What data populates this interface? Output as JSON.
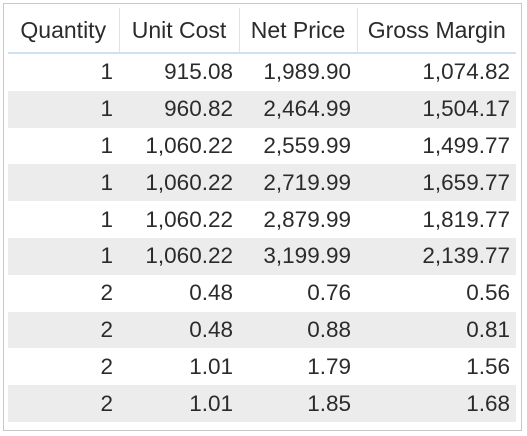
{
  "table": {
    "columns": [
      "Quantity",
      "Unit Cost",
      "Net Price",
      "Gross Margin"
    ],
    "rows": [
      [
        "1",
        "915.08",
        "1,989.90",
        "1,074.82"
      ],
      [
        "1",
        "960.82",
        "2,464.99",
        "1,504.17"
      ],
      [
        "1",
        "1,060.22",
        "2,559.99",
        "1,499.77"
      ],
      [
        "1",
        "1,060.22",
        "2,719.99",
        "1,659.77"
      ],
      [
        "1",
        "1,060.22",
        "2,879.99",
        "1,819.77"
      ],
      [
        "1",
        "1,060.22",
        "3,199.99",
        "2,139.77"
      ],
      [
        "2",
        "0.48",
        "0.76",
        "0.56"
      ],
      [
        "2",
        "0.48",
        "0.88",
        "0.81"
      ],
      [
        "2",
        "1.01",
        "1.79",
        "1.56"
      ],
      [
        "2",
        "1.01",
        "1.85",
        "1.68"
      ]
    ]
  },
  "colors": {
    "header_rule": "#cfe0f3",
    "stripe": "#ececec",
    "text": "#2b2b2b",
    "border": "#c8c8c8"
  }
}
